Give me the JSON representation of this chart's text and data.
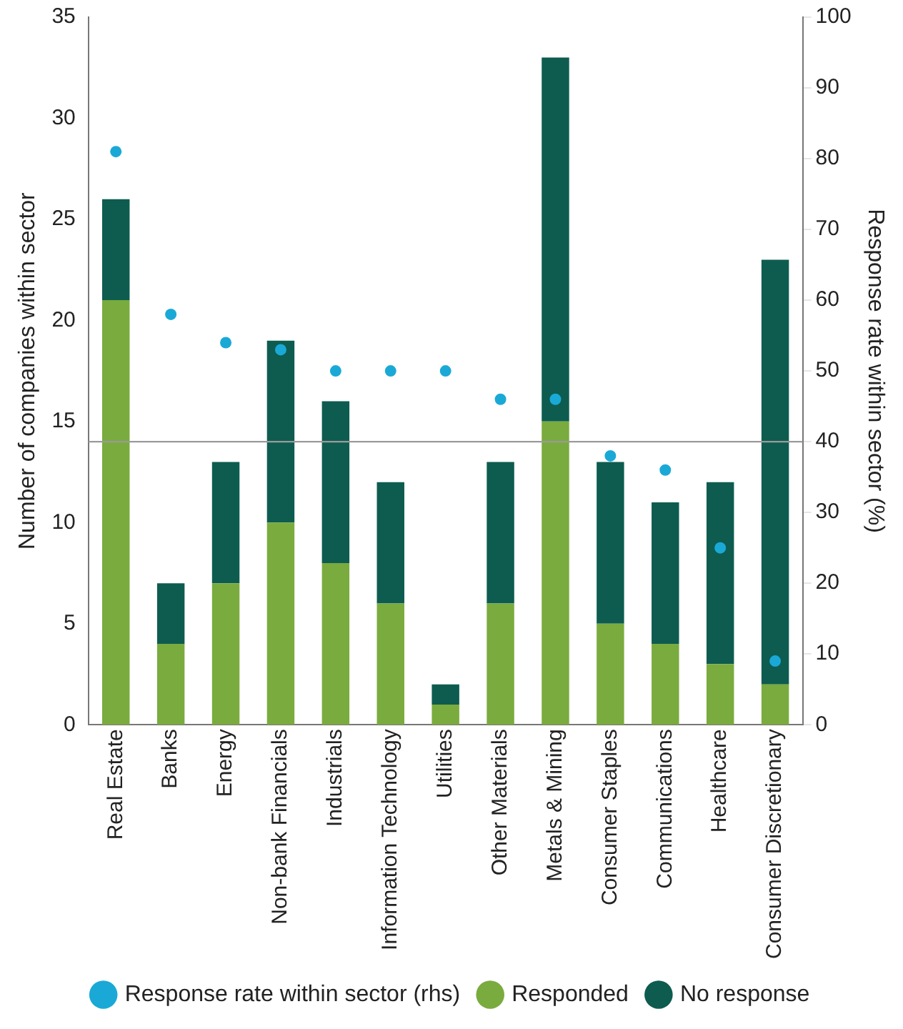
{
  "chart_data": {
    "type": "bar",
    "stacked": true,
    "ylabel": "Number of companies within sector",
    "y2label": "Response rate within sector (%)",
    "categories": [
      "Real Estate",
      "Banks",
      "Energy",
      "Non-bank Financials",
      "Industrials",
      "Information Technology",
      "Utilities",
      "Other Materials",
      "Metals & Mining",
      "Consumer Staples",
      "Communications",
      "Healthcare",
      "Consumer Discretionary"
    ],
    "series": [
      {
        "name": "Responded",
        "color": "#7aab3e",
        "values": [
          21,
          4,
          7,
          10,
          8,
          6,
          1,
          6,
          15,
          5,
          4,
          3,
          2
        ]
      },
      {
        "name": "No response",
        "color": "#0d5c4f",
        "values": [
          5,
          3,
          6,
          9,
          8,
          6,
          1,
          7,
          18,
          8,
          7,
          9,
          21
        ]
      },
      {
        "name": "Response rate within sector (rhs)",
        "type": "scatter",
        "axis": "y2",
        "color": "#1aa9d6",
        "values": [
          81,
          58,
          54,
          53,
          50,
          50,
          50,
          46,
          46,
          38,
          36,
          25,
          9
        ]
      }
    ],
    "ylim": [
      0,
      35
    ],
    "yticks": [
      0,
      5,
      10,
      15,
      20,
      25,
      30,
      35
    ],
    "y2lim": [
      0,
      100
    ],
    "y2ticks": [
      0,
      10,
      20,
      30,
      40,
      50,
      60,
      70,
      80,
      90,
      100
    ],
    "ref_lines": [
      {
        "axis": "y2",
        "value": 40,
        "color": "#9a9a9a"
      }
    ],
    "grid": false,
    "legend": "bottom",
    "marker": "circle"
  }
}
